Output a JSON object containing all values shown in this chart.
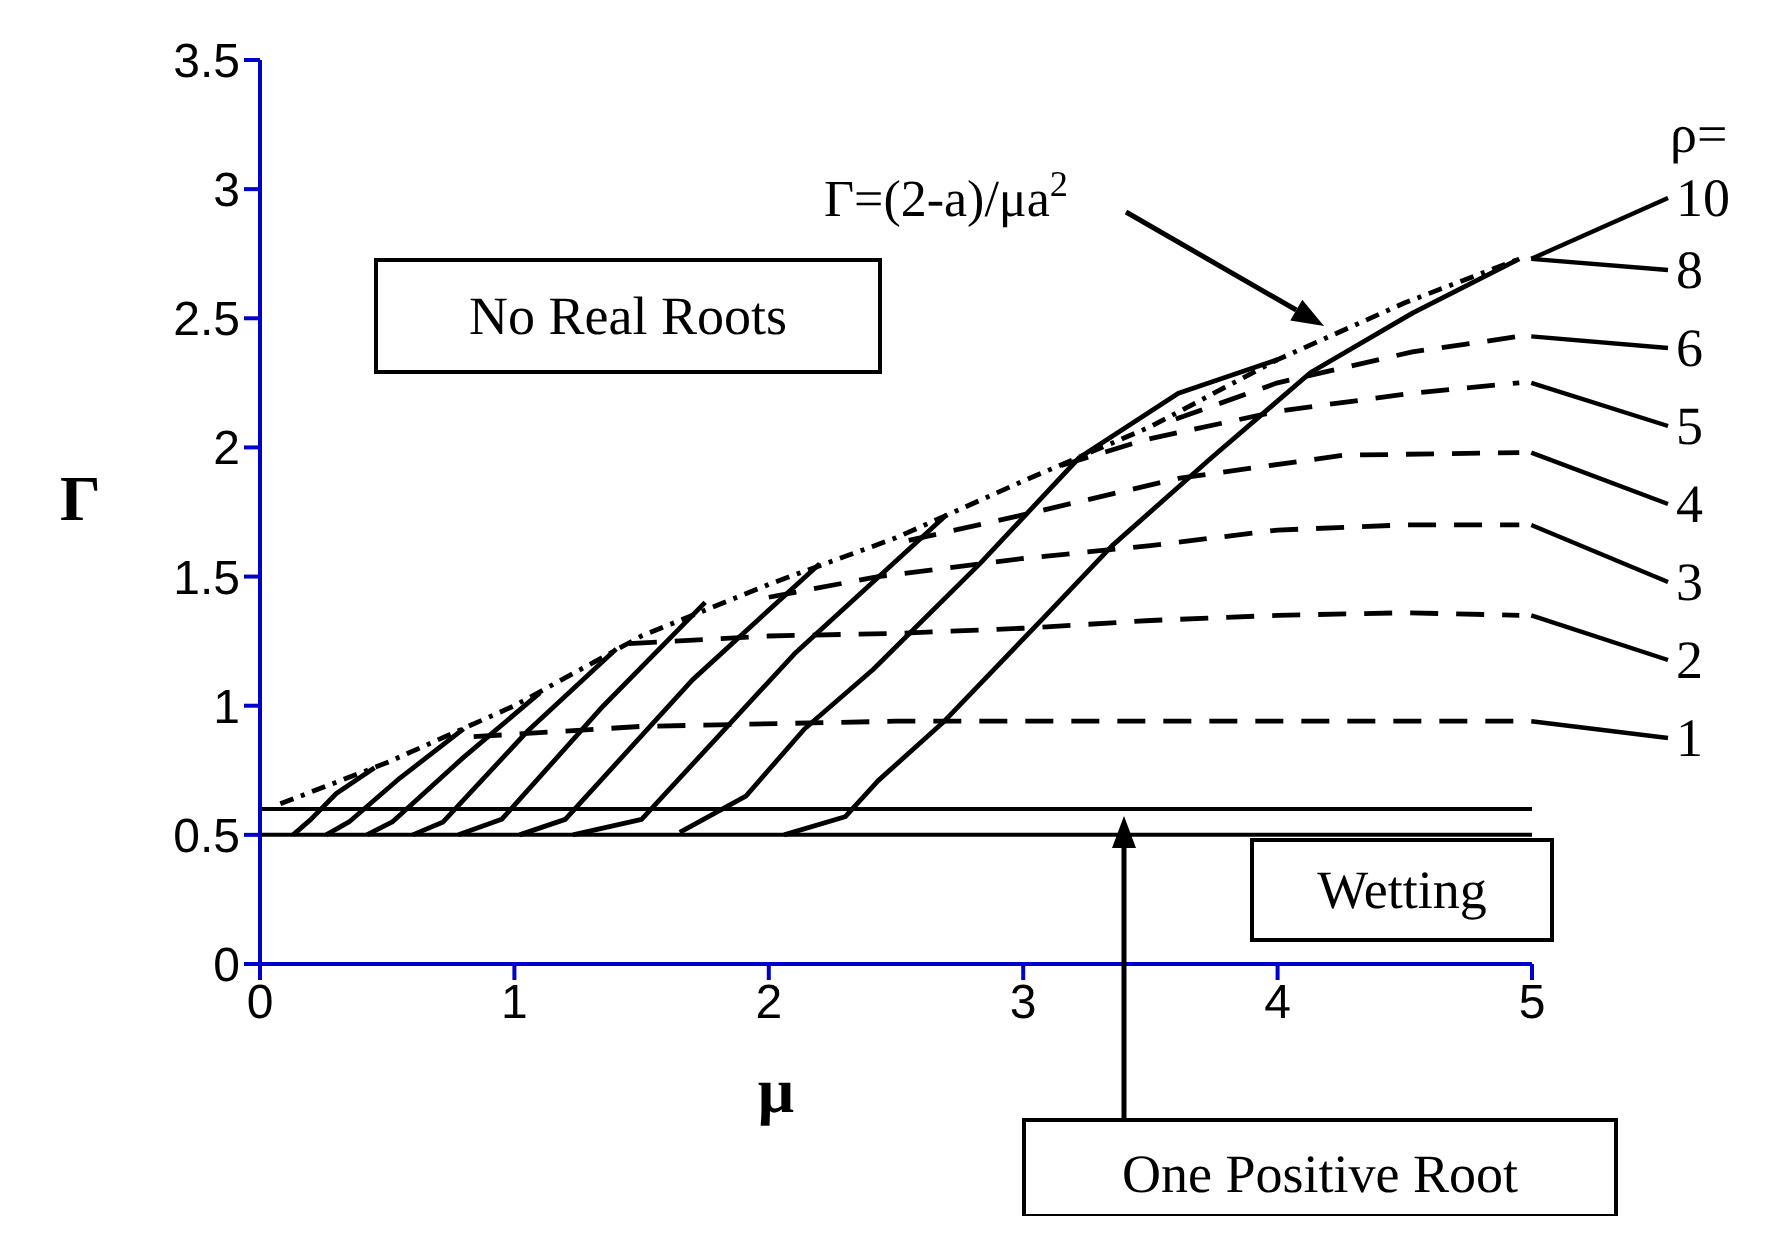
{
  "chart_data": {
    "type": "line",
    "xlabel": "μ",
    "ylabel": "Γ",
    "xlim": [
      0,
      5
    ],
    "xticks": [
      0,
      1,
      2,
      3,
      4,
      5
    ],
    "ylim": [
      0,
      3.5
    ],
    "yticks": [
      0,
      0.5,
      1,
      1.5,
      2,
      2.5,
      3,
      3.5
    ],
    "grid": false,
    "legend": false,
    "marker": "none",
    "series": [
      {
        "color": "#000000",
        "line_style": "dotted",
        "x": [
          0.08,
          0.5,
          1,
          1.5,
          2,
          2.5,
          3,
          3.5,
          4,
          4.5,
          4.95
        ],
        "values": [
          0.62,
          0.78,
          1.0,
          1.27,
          1.47,
          1.65,
          1.87,
          2.08,
          2.34,
          2.56,
          2.73
        ]
      },
      {
        "color": "#000000",
        "line_style": "solid",
        "x": [
          0.13,
          0.2,
          0.3,
          0.45
        ],
        "values": [
          0.5,
          0.56,
          0.66,
          0.76
        ]
      },
      {
        "color": "#000000",
        "line_style": "solid",
        "x": [
          0.26,
          0.35,
          0.55,
          0.8
        ],
        "values": [
          0.5,
          0.55,
          0.72,
          0.91
        ]
      },
      {
        "color": "#000000",
        "line_style": "solid",
        "x": [
          0.42,
          0.52,
          0.8,
          1.1
        ],
        "values": [
          0.5,
          0.55,
          0.8,
          1.05
        ]
      },
      {
        "color": "#000000",
        "line_style": "solid",
        "x": [
          0.6,
          0.72,
          1.05,
          1.4
        ],
        "values": [
          0.5,
          0.55,
          0.9,
          1.22
        ]
      },
      {
        "color": "#000000",
        "line_style": "solid",
        "x": [
          0.78,
          0.95,
          1.35,
          1.75
        ],
        "values": [
          0.5,
          0.56,
          1.0,
          1.4
        ]
      },
      {
        "color": "#000000",
        "line_style": "solid",
        "x": [
          1.02,
          1.2,
          1.7,
          2.2
        ],
        "values": [
          0.5,
          0.56,
          1.1,
          1.55
        ]
      },
      {
        "color": "#000000",
        "line_style": "solid",
        "x": [
          1.23,
          1.5,
          2.1,
          2.7
        ],
        "values": [
          0.5,
          0.56,
          1.2,
          1.74
        ]
      },
      {
        "color": "#000000",
        "line_style": "solid",
        "x": [
          1.65,
          1.91,
          2.14,
          2.41,
          2.83,
          3.22,
          3.61,
          4.0
        ],
        "values": [
          0.51,
          0.65,
          0.91,
          1.14,
          1.55,
          1.96,
          2.21,
          2.34
        ]
      },
      {
        "color": "#000000",
        "line_style": "solid",
        "x": [
          2.06,
          2.3,
          2.43,
          2.69,
          3.08,
          3.35,
          3.74,
          4.13,
          4.53,
          4.95
        ],
        "values": [
          0.5,
          0.57,
          0.71,
          0.94,
          1.34,
          1.62,
          1.96,
          2.29,
          2.52,
          2.73
        ]
      },
      {
        "color": "#000000",
        "line_style": "dashed",
        "x": [
          0.84,
          1.5,
          2.5,
          3.5,
          4.95
        ],
        "values": [
          0.88,
          0.92,
          0.94,
          0.94,
          0.94
        ]
      },
      {
        "color": "#000000",
        "line_style": "dashed",
        "x": [
          1.45,
          2,
          2.5,
          3,
          3.5,
          4,
          4.5,
          4.95
        ],
        "values": [
          1.24,
          1.27,
          1.28,
          1.3,
          1.33,
          1.35,
          1.36,
          1.35
        ]
      },
      {
        "color": "#000000",
        "line_style": "dashed",
        "x": [
          2.0,
          2.43,
          3,
          3.5,
          4,
          4.5,
          4.95
        ],
        "values": [
          1.42,
          1.5,
          1.57,
          1.62,
          1.68,
          1.7,
          1.7
        ]
      },
      {
        "color": "#000000",
        "line_style": "dashed",
        "x": [
          2.55,
          2.96,
          3.61,
          4.26,
          4.95
        ],
        "values": [
          1.64,
          1.73,
          1.88,
          1.97,
          1.98
        ]
      },
      {
        "color": "#000000",
        "line_style": "dashed",
        "x": [
          3.15,
          3.48,
          4.0,
          4.53,
          4.95
        ],
        "values": [
          1.93,
          2.03,
          2.14,
          2.21,
          2.25
        ]
      },
      {
        "color": "#000000",
        "line_style": "dashed",
        "x": [
          3.6,
          4.0,
          4.53,
          4.95
        ],
        "values": [
          2.11,
          2.25,
          2.37,
          2.43
        ]
      }
    ],
    "ref_lines": [
      {
        "axis": "y",
        "value": 0.5,
        "color": "#000000"
      },
      {
        "axis": "y",
        "value": 0.6,
        "color": "#000000"
      }
    ],
    "annotations": [
      "No Real Roots",
      "Γ=(2-a)/μa$^{2}$",
      "Wetting",
      "One Positive Root",
      "ρ=",
      "10",
      "8",
      "6",
      "5",
      "4",
      "3",
      "2",
      "1"
    ]
  }
}
